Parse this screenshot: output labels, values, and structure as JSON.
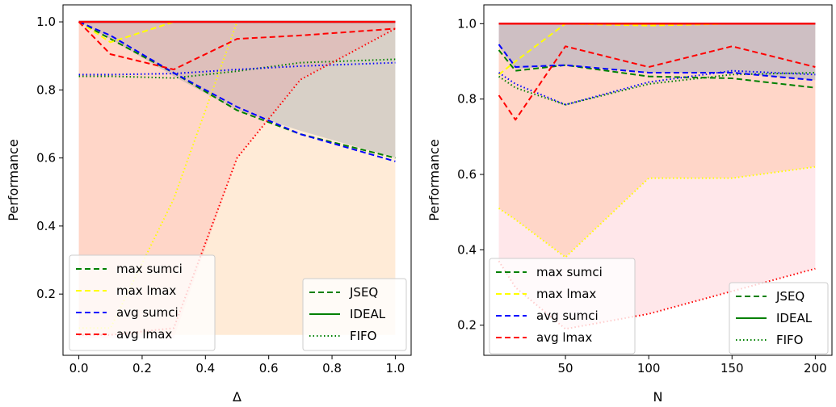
{
  "chart_data": [
    {
      "type": "line",
      "xlabel": "Δ",
      "ylabel": "Performance",
      "xlim": [
        -0.05,
        1.05
      ],
      "ylim": [
        0.02,
        1.05
      ],
      "xticks": [
        "0.0",
        "0.2",
        "0.4",
        "0.6",
        "0.8",
        "1.0"
      ],
      "xtick_values": [
        0.0,
        0.2,
        0.4,
        0.6,
        0.8,
        1.0
      ],
      "yticks": [
        "0.2",
        "0.4",
        "0.6",
        "0.8",
        "1.0"
      ],
      "ytick_values": [
        0.2,
        0.4,
        0.6,
        0.8,
        1.0
      ],
      "grid": false,
      "x": [
        0.0,
        0.1,
        0.3,
        0.5,
        0.7,
        1.0
      ],
      "fills": [
        {
          "metric": "max sumci",
          "color": "#4f86b8",
          "opacity": 0.28,
          "ideal": [
            1,
            1,
            1,
            1,
            1,
            1
          ],
          "lower": [
            1.0,
            0.95,
            0.84,
            0.74,
            0.68,
            0.6
          ]
        },
        {
          "metric": "max lmax",
          "color": "#ffa24a",
          "opacity": 0.22,
          "ideal": [
            1,
            1,
            1,
            1,
            1,
            1
          ],
          "lower": [
            0.08,
            0.08,
            0.08,
            0.08,
            0.08,
            0.08
          ]
        },
        {
          "metric": "avg lmax",
          "color": "#ff6b7a",
          "opacity": 0.16,
          "ideal": [
            1,
            1,
            1,
            1,
            1,
            1
          ],
          "lower": [
            0.07,
            0.07,
            0.07,
            0.6,
            0.83,
            0.98
          ]
        }
      ],
      "series": [
        {
          "metric": "max sumci",
          "policy": "JSEQ",
          "color": "#008000",
          "dash": "dashed",
          "values": [
            1.0,
            0.95,
            0.85,
            0.74,
            0.67,
            0.6
          ]
        },
        {
          "metric": "max sumci",
          "policy": "IDEAL",
          "color": "#008000",
          "dash": "solid",
          "values": [
            1.0,
            1.0,
            1.0,
            1.0,
            1.0,
            1.0
          ]
        },
        {
          "metric": "max sumci",
          "policy": "FIFO",
          "color": "#008000",
          "dash": "dotted",
          "values": [
            0.84,
            0.84,
            0.835,
            0.855,
            0.88,
            0.89
          ]
        },
        {
          "metric": "max lmax",
          "policy": "JSEQ",
          "color": "#ffff00",
          "dash": "dashed",
          "values": [
            1.0,
            0.94,
            1.0,
            1.0,
            1.0,
            1.0
          ]
        },
        {
          "metric": "max lmax",
          "policy": "IDEAL",
          "color": "#ffff00",
          "dash": "solid",
          "values": [
            1.0,
            1.0,
            1.0,
            1.0,
            1.0,
            1.0
          ]
        },
        {
          "metric": "max lmax",
          "policy": "FIFO",
          "color": "#ffff00",
          "dash": "dotted",
          "values": [
            0.1,
            0.1,
            0.48,
            1.0,
            1.0,
            1.0
          ]
        },
        {
          "metric": "avg sumci",
          "policy": "JSEQ",
          "color": "#0000ff",
          "dash": "dashed",
          "values": [
            1.0,
            0.96,
            0.85,
            0.75,
            0.67,
            0.59
          ]
        },
        {
          "metric": "avg sumci",
          "policy": "IDEAL",
          "color": "#0000ff",
          "dash": "solid",
          "values": [
            1.0,
            1.0,
            1.0,
            1.0,
            1.0,
            1.0
          ]
        },
        {
          "metric": "avg sumci",
          "policy": "FIFO",
          "color": "#0000ff",
          "dash": "dotted",
          "values": [
            0.845,
            0.845,
            0.848,
            0.86,
            0.87,
            0.88
          ]
        },
        {
          "metric": "avg lmax",
          "policy": "JSEQ",
          "color": "#ff0000",
          "dash": "dashed",
          "values": [
            1.0,
            0.905,
            0.86,
            0.95,
            0.96,
            0.98
          ]
        },
        {
          "metric": "avg lmax",
          "policy": "IDEAL",
          "color": "#ff0000",
          "dash": "solid",
          "values": [
            1.0,
            1.0,
            1.0,
            1.0,
            1.0,
            1.0
          ]
        },
        {
          "metric": "avg lmax",
          "policy": "FIFO",
          "color": "#ff0000",
          "dash": "dotted",
          "values": [
            0.08,
            0.08,
            0.1,
            0.6,
            0.83,
            0.98
          ]
        }
      ],
      "legend_metrics": [
        {
          "label": "max sumci",
          "color": "#008000"
        },
        {
          "label": "max lmax",
          "color": "#ffff00"
        },
        {
          "label": "avg sumci",
          "color": "#0000ff"
        },
        {
          "label": "avg lmax",
          "color": "#ff0000"
        }
      ],
      "legend_metrics_placement": "lower-left",
      "legend_policies": [
        {
          "label": "JSEQ",
          "dash": "dashed"
        },
        {
          "label": "IDEAL",
          "dash": "solid"
        },
        {
          "label": "FIFO",
          "dash": "dotted"
        }
      ],
      "legend_policies_placement": "lower-right"
    },
    {
      "type": "line",
      "xlabel": "N",
      "ylabel": "Performance",
      "xlim": [
        1,
        210
      ],
      "ylim": [
        0.12,
        1.05
      ],
      "xticks": [
        "50",
        "100",
        "150",
        "200"
      ],
      "xtick_values": [
        50,
        100,
        150,
        200
      ],
      "yticks": [
        "0.2",
        "0.4",
        "0.6",
        "0.8",
        "1.0"
      ],
      "ytick_values": [
        0.2,
        0.4,
        0.6,
        0.8,
        1.0
      ],
      "grid": false,
      "x": [
        10,
        20,
        50,
        100,
        150,
        200
      ],
      "fills": [
        {
          "metric": "max lmax",
          "color": "#ffa24a",
          "opacity": 0.22,
          "ideal": [
            1,
            1,
            1,
            1,
            1,
            1
          ],
          "lower": [
            0.51,
            0.48,
            0.38,
            0.59,
            0.59,
            0.62
          ]
        },
        {
          "metric": "avg lmax",
          "color": "#ff6b7a",
          "opacity": 0.16,
          "ideal": [
            1,
            1,
            1,
            1,
            1,
            1
          ],
          "lower": [
            0.37,
            0.3,
            0.19,
            0.23,
            0.29,
            0.35
          ]
        },
        {
          "metric": "max sumci",
          "color": "#4f86b8",
          "opacity": 0.28,
          "ideal": [
            1,
            1,
            1,
            1,
            1,
            1
          ],
          "lower": [
            0.94,
            0.88,
            0.89,
            0.87,
            0.87,
            0.85
          ]
        }
      ],
      "series": [
        {
          "metric": "max sumci",
          "policy": "JSEQ",
          "color": "#008000",
          "dash": "dashed",
          "values": [
            0.93,
            0.875,
            0.89,
            0.86,
            0.855,
            0.83
          ]
        },
        {
          "metric": "max sumci",
          "policy": "IDEAL",
          "color": "#008000",
          "dash": "solid",
          "values": [
            1.0,
            1.0,
            1.0,
            1.0,
            1.0,
            1.0
          ]
        },
        {
          "metric": "max sumci",
          "policy": "FIFO",
          "color": "#008000",
          "dash": "dotted",
          "values": [
            0.86,
            0.83,
            0.785,
            0.84,
            0.865,
            0.87
          ]
        },
        {
          "metric": "max lmax",
          "policy": "JSEQ",
          "color": "#ffff00",
          "dash": "dashed",
          "values": [
            0.865,
            0.9,
            1.0,
            0.995,
            1.0,
            1.0
          ]
        },
        {
          "metric": "max lmax",
          "policy": "IDEAL",
          "color": "#ffff00",
          "dash": "solid",
          "values": [
            1.0,
            1.0,
            1.0,
            1.0,
            1.0,
            1.0
          ]
        },
        {
          "metric": "max lmax",
          "policy": "FIFO",
          "color": "#ffff00",
          "dash": "dotted",
          "values": [
            0.51,
            0.48,
            0.38,
            0.59,
            0.59,
            0.62
          ]
        },
        {
          "metric": "avg sumci",
          "policy": "JSEQ",
          "color": "#0000ff",
          "dash": "dashed",
          "values": [
            0.945,
            0.885,
            0.89,
            0.87,
            0.87,
            0.85
          ]
        },
        {
          "metric": "avg sumci",
          "policy": "IDEAL",
          "color": "#0000ff",
          "dash": "solid",
          "values": [
            1.0,
            1.0,
            1.0,
            1.0,
            1.0,
            1.0
          ]
        },
        {
          "metric": "avg sumci",
          "policy": "FIFO",
          "color": "#0000ff",
          "dash": "dotted",
          "values": [
            0.87,
            0.84,
            0.785,
            0.845,
            0.875,
            0.865
          ]
        },
        {
          "metric": "avg lmax",
          "policy": "JSEQ",
          "color": "#ff0000",
          "dash": "dashed",
          "values": [
            0.81,
            0.745,
            0.94,
            0.885,
            0.94,
            0.885
          ]
        },
        {
          "metric": "avg lmax",
          "policy": "IDEAL",
          "color": "#ff0000",
          "dash": "solid",
          "values": [
            1.0,
            1.0,
            1.0,
            1.0,
            1.0,
            1.0
          ]
        },
        {
          "metric": "avg lmax",
          "policy": "FIFO",
          "color": "#ff0000",
          "dash": "dotted",
          "values": [
            0.37,
            0.3,
            0.19,
            0.23,
            0.29,
            0.35
          ]
        }
      ],
      "legend_metrics": [
        {
          "label": "max sumci",
          "color": "#008000"
        },
        {
          "label": "max lmax",
          "color": "#ffff00"
        },
        {
          "label": "avg sumci",
          "color": "#0000ff"
        },
        {
          "label": "avg lmax",
          "color": "#ff0000"
        }
      ],
      "legend_metrics_placement": "lower-left",
      "legend_policies": [
        {
          "label": "JSEQ",
          "dash": "dashed"
        },
        {
          "label": "IDEAL",
          "dash": "solid"
        },
        {
          "label": "FIFO",
          "dash": "dotted"
        }
      ],
      "legend_policies_placement": "lower-right"
    }
  ]
}
